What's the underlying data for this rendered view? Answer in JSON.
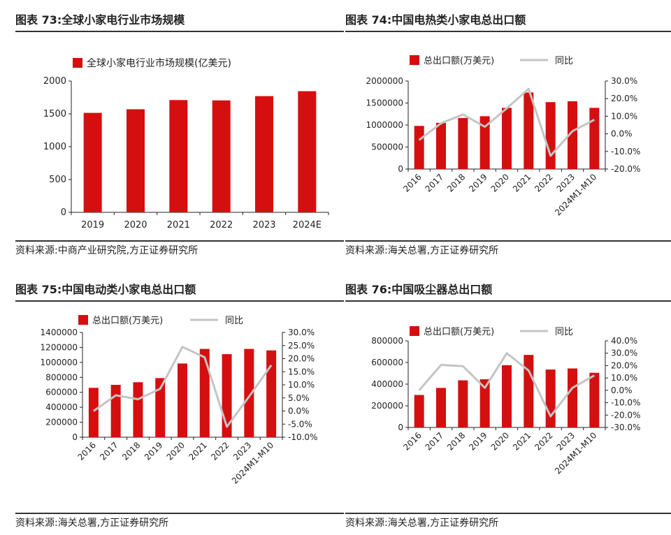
{
  "colors": {
    "bar": "#d50f0f",
    "line": "#c4c4c4",
    "axis": "#222222"
  },
  "panels": [
    {
      "title": "图表 73:全球小家电行业市场规模",
      "source": "资料来源:中商产业研究院,方正证券研究所"
    },
    {
      "title": "图表 74:中国电热类小家电总出口额",
      "source": "资料来源:海关总署,方正证券研究所"
    },
    {
      "title": "图表 75:中国电动类小家电总出口额",
      "source": "资料来源:海关总署,方正证券研究所"
    },
    {
      "title": "图表 76:中国吸尘器总出口额",
      "source": "资料来源:海关总署,方正证券研究所"
    }
  ],
  "chart_data": [
    {
      "type": "bar",
      "categories": [
        "2019",
        "2020",
        "2021",
        "2022",
        "2023",
        "2024E"
      ],
      "series": [
        {
          "name": "全球小家电行业市场规模(亿美元)",
          "values": [
            1515,
            1570,
            1710,
            1705,
            1770,
            1845
          ]
        }
      ],
      "ylim": [
        0,
        2000
      ],
      "yticks": [
        "0",
        "500",
        "1000",
        "1500",
        "2000"
      ],
      "legend": "top"
    },
    {
      "type": "bar+line",
      "categories": [
        "2016",
        "2017",
        "2018",
        "2019",
        "2020",
        "2021",
        "2022",
        "2023",
        "2024M1-M10"
      ],
      "series": [
        {
          "name": "总出口额(万美元)",
          "type": "bar",
          "axis": "left",
          "values": [
            980000,
            1050000,
            1160000,
            1200000,
            1390000,
            1740000,
            1520000,
            1540000,
            1390000
          ]
        },
        {
          "name": "同比",
          "type": "line",
          "axis": "right",
          "values": [
            -3.5,
            6.0,
            11.0,
            4.0,
            14.5,
            25.5,
            -12.5,
            1.5,
            8.0
          ]
        }
      ],
      "ylim": [
        0,
        2000000
      ],
      "yticks": [
        "0",
        "500000",
        "1000000",
        "1500000",
        "2000000"
      ],
      "y2lim": [
        -20,
        30
      ],
      "y2ticks": [
        "-20.0%",
        "-10.0%",
        "0.0%",
        "10.0%",
        "20.0%",
        "30.0%"
      ],
      "legend": "top"
    },
    {
      "type": "bar+line",
      "categories": [
        "2016",
        "2017",
        "2018",
        "2019",
        "2020",
        "2021",
        "2022",
        "2023",
        "2024M1-M10"
      ],
      "series": [
        {
          "name": "总出口额(万美元)",
          "type": "bar",
          "axis": "left",
          "values": [
            660000,
            700000,
            735000,
            790000,
            985000,
            1180000,
            1110000,
            1180000,
            1160000
          ]
        },
        {
          "name": "同比",
          "type": "line",
          "axis": "right",
          "values": [
            0.0,
            6.0,
            4.5,
            8.5,
            24.5,
            20.5,
            -6.0,
            5.5,
            17.5
          ]
        }
      ],
      "ylim": [
        0,
        1400000
      ],
      "yticks": [
        "0",
        "200000",
        "400000",
        "600000",
        "800000",
        "1000000",
        "1200000",
        "1400000"
      ],
      "y2lim": [
        -10,
        30
      ],
      "y2ticks": [
        "-10.0%",
        "-5.0%",
        "0.0%",
        "5.0%",
        "10.0%",
        "15.0%",
        "20.0%",
        "25.0%",
        "30.0%"
      ],
      "legend": "top"
    },
    {
      "type": "bar+line",
      "categories": [
        "2016",
        "2017",
        "2018",
        "2019",
        "2020",
        "2021",
        "2022",
        "2023",
        "2024M1-M10"
      ],
      "series": [
        {
          "name": "总出口额(万美元)",
          "type": "bar",
          "axis": "left",
          "values": [
            300000,
            365000,
            435000,
            445000,
            575000,
            670000,
            535000,
            545000,
            505000
          ]
        },
        {
          "name": "同比",
          "type": "line",
          "axis": "right",
          "values": [
            0.0,
            20.5,
            19.5,
            2.0,
            30.0,
            16.0,
            -21.0,
            2.0,
            12.0
          ]
        }
      ],
      "ylim": [
        0,
        800000
      ],
      "yticks": [
        "0",
        "200000",
        "400000",
        "600000",
        "800000"
      ],
      "y2lim": [
        -30,
        40
      ],
      "y2ticks": [
        "-30.0%",
        "-20.0%",
        "-10.0%",
        "0.0%",
        "10.0%",
        "20.0%",
        "30.0%",
        "40.0%"
      ],
      "legend": "top"
    }
  ]
}
